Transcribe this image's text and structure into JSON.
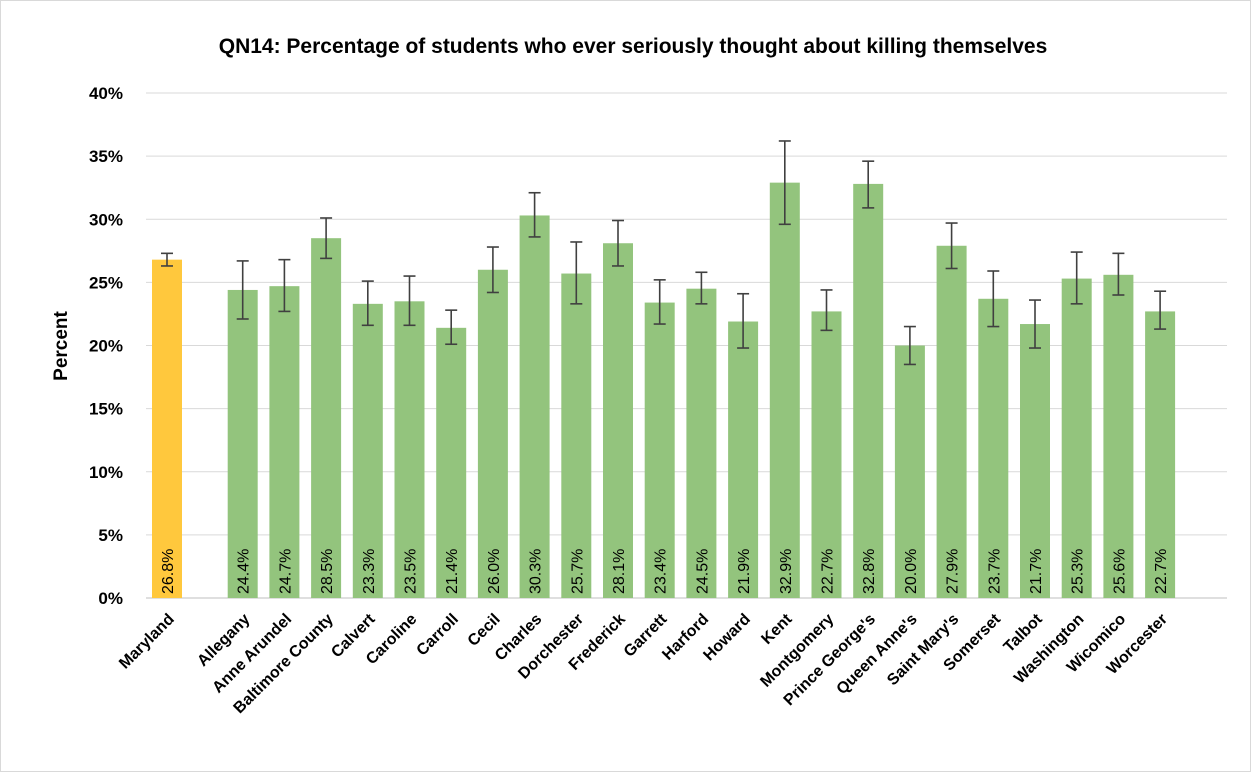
{
  "chart_data": {
    "type": "bar",
    "title": "QN14: Percentage of students who ever seriously thought about killing themselves",
    "ylabel": "Percent",
    "xlabel": "",
    "ylim": [
      0,
      40
    ],
    "yticks": [
      0,
      5,
      10,
      15,
      20,
      25,
      30,
      35,
      40
    ],
    "ytick_labels": [
      "0%",
      "5%",
      "10%",
      "15%",
      "20%",
      "25%",
      "30%",
      "35%",
      "40%"
    ],
    "grid": true,
    "legend": "none",
    "colors": {
      "state": "#ffc83d",
      "county": "#93c47d",
      "grid": "#d9d9d9",
      "error_bar": "#404040"
    },
    "categories": [
      "Maryland",
      "Allegany",
      "Anne Arundel",
      "Baltimore County",
      "Calvert",
      "Caroline",
      "Carroll",
      "Cecil",
      "Charles",
      "Dorchester",
      "Frederick",
      "Garrett",
      "Harford",
      "Howard",
      "Kent",
      "Montgomery",
      "Prince George's",
      "Queen Anne's",
      "Saint Mary's",
      "Somerset",
      "Talbot",
      "Washington",
      "Wicomico",
      "Worcester"
    ],
    "values": [
      26.8,
      24.4,
      24.7,
      28.5,
      23.3,
      23.5,
      21.4,
      26.0,
      30.3,
      25.7,
      28.1,
      23.4,
      24.5,
      21.9,
      32.9,
      22.7,
      32.8,
      20.0,
      27.9,
      23.7,
      21.7,
      25.3,
      25.6,
      22.7
    ],
    "data_labels": [
      "26.8%",
      "24.4%",
      "24.7%",
      "28.5%",
      "23.3%",
      "23.5%",
      "21.4%",
      "26.0%",
      "30.3%",
      "25.7%",
      "28.1%",
      "23.4%",
      "24.5%",
      "21.9%",
      "32.9%",
      "22.7%",
      "32.8%",
      "20.0%",
      "27.9%",
      "23.7%",
      "21.7%",
      "25.3%",
      "25.6%",
      "22.7%"
    ],
    "ci_lower": [
      26.3,
      22.1,
      22.7,
      26.9,
      21.6,
      21.6,
      20.1,
      24.2,
      28.6,
      23.3,
      26.3,
      21.7,
      23.3,
      19.8,
      29.6,
      21.2,
      30.9,
      18.5,
      26.1,
      21.5,
      19.8,
      23.3,
      24.0,
      21.3
    ],
    "ci_upper": [
      27.3,
      26.7,
      26.8,
      30.1,
      25.1,
      25.5,
      22.8,
      27.8,
      32.1,
      28.2,
      29.9,
      25.2,
      25.8,
      24.1,
      36.2,
      24.4,
      34.6,
      21.5,
      29.7,
      25.9,
      23.6,
      27.4,
      27.3,
      24.3
    ]
  }
}
